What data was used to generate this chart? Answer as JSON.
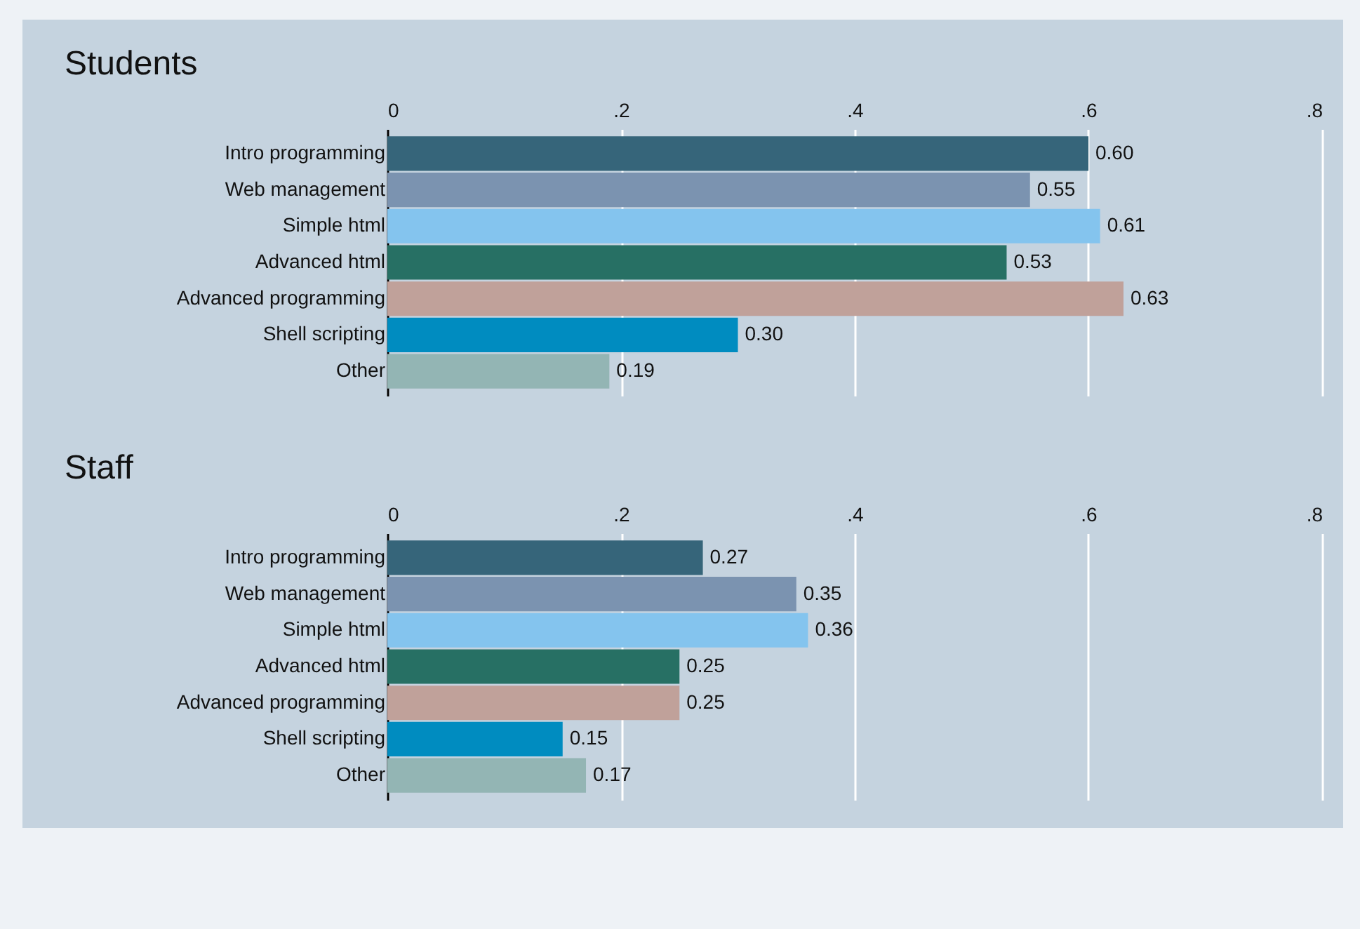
{
  "chart_data": [
    {
      "type": "bar",
      "orientation": "horizontal",
      "title": "Students",
      "categories": [
        "Intro programming",
        "Web management",
        "Simple html",
        "Advanced html",
        "Advanced programming",
        "Shell scripting",
        "Other"
      ],
      "values": [
        0.6,
        0.55,
        0.61,
        0.53,
        0.63,
        0.3,
        0.19
      ],
      "value_labels": [
        "0.60",
        "0.55",
        "0.61",
        "0.53",
        "0.63",
        "0.30",
        "0.19"
      ],
      "colors": [
        "#36657a",
        "#7b93b0",
        "#84c4ee",
        "#277064",
        "#c0a19a",
        "#008cc0",
        "#93b5b4"
      ],
      "xlim": [
        0,
        0.8
      ],
      "xticks": [
        0,
        {
          "value": 0.2,
          "label": ".2"
        },
        {
          "value": 0.4,
          "label": ".4"
        },
        {
          "value": 0.6,
          "label": ".6"
        },
        {
          "value": 0.8,
          "label": ".8"
        }
      ],
      "grid": "x"
    },
    {
      "type": "bar",
      "orientation": "horizontal",
      "title": "Staff",
      "categories": [
        "Intro programming",
        "Web management",
        "Simple html",
        "Advanced html",
        "Advanced programming",
        "Shell scripting",
        "Other"
      ],
      "values": [
        0.27,
        0.35,
        0.36,
        0.25,
        0.25,
        0.15,
        0.17
      ],
      "value_labels": [
        "0.27",
        "0.35",
        "0.36",
        "0.25",
        "0.25",
        "0.15",
        "0.17"
      ],
      "colors": [
        "#36657a",
        "#7b93b0",
        "#84c4ee",
        "#277064",
        "#c0a19a",
        "#008cc0",
        "#93b5b4"
      ],
      "xlim": [
        0,
        0.8
      ],
      "xticks": [
        0,
        {
          "value": 0.2,
          "label": ".2"
        },
        {
          "value": 0.4,
          "label": ".4"
        },
        {
          "value": 0.6,
          "label": ".6"
        },
        {
          "value": 0.8,
          "label": ".8"
        }
      ],
      "grid": "x"
    }
  ]
}
